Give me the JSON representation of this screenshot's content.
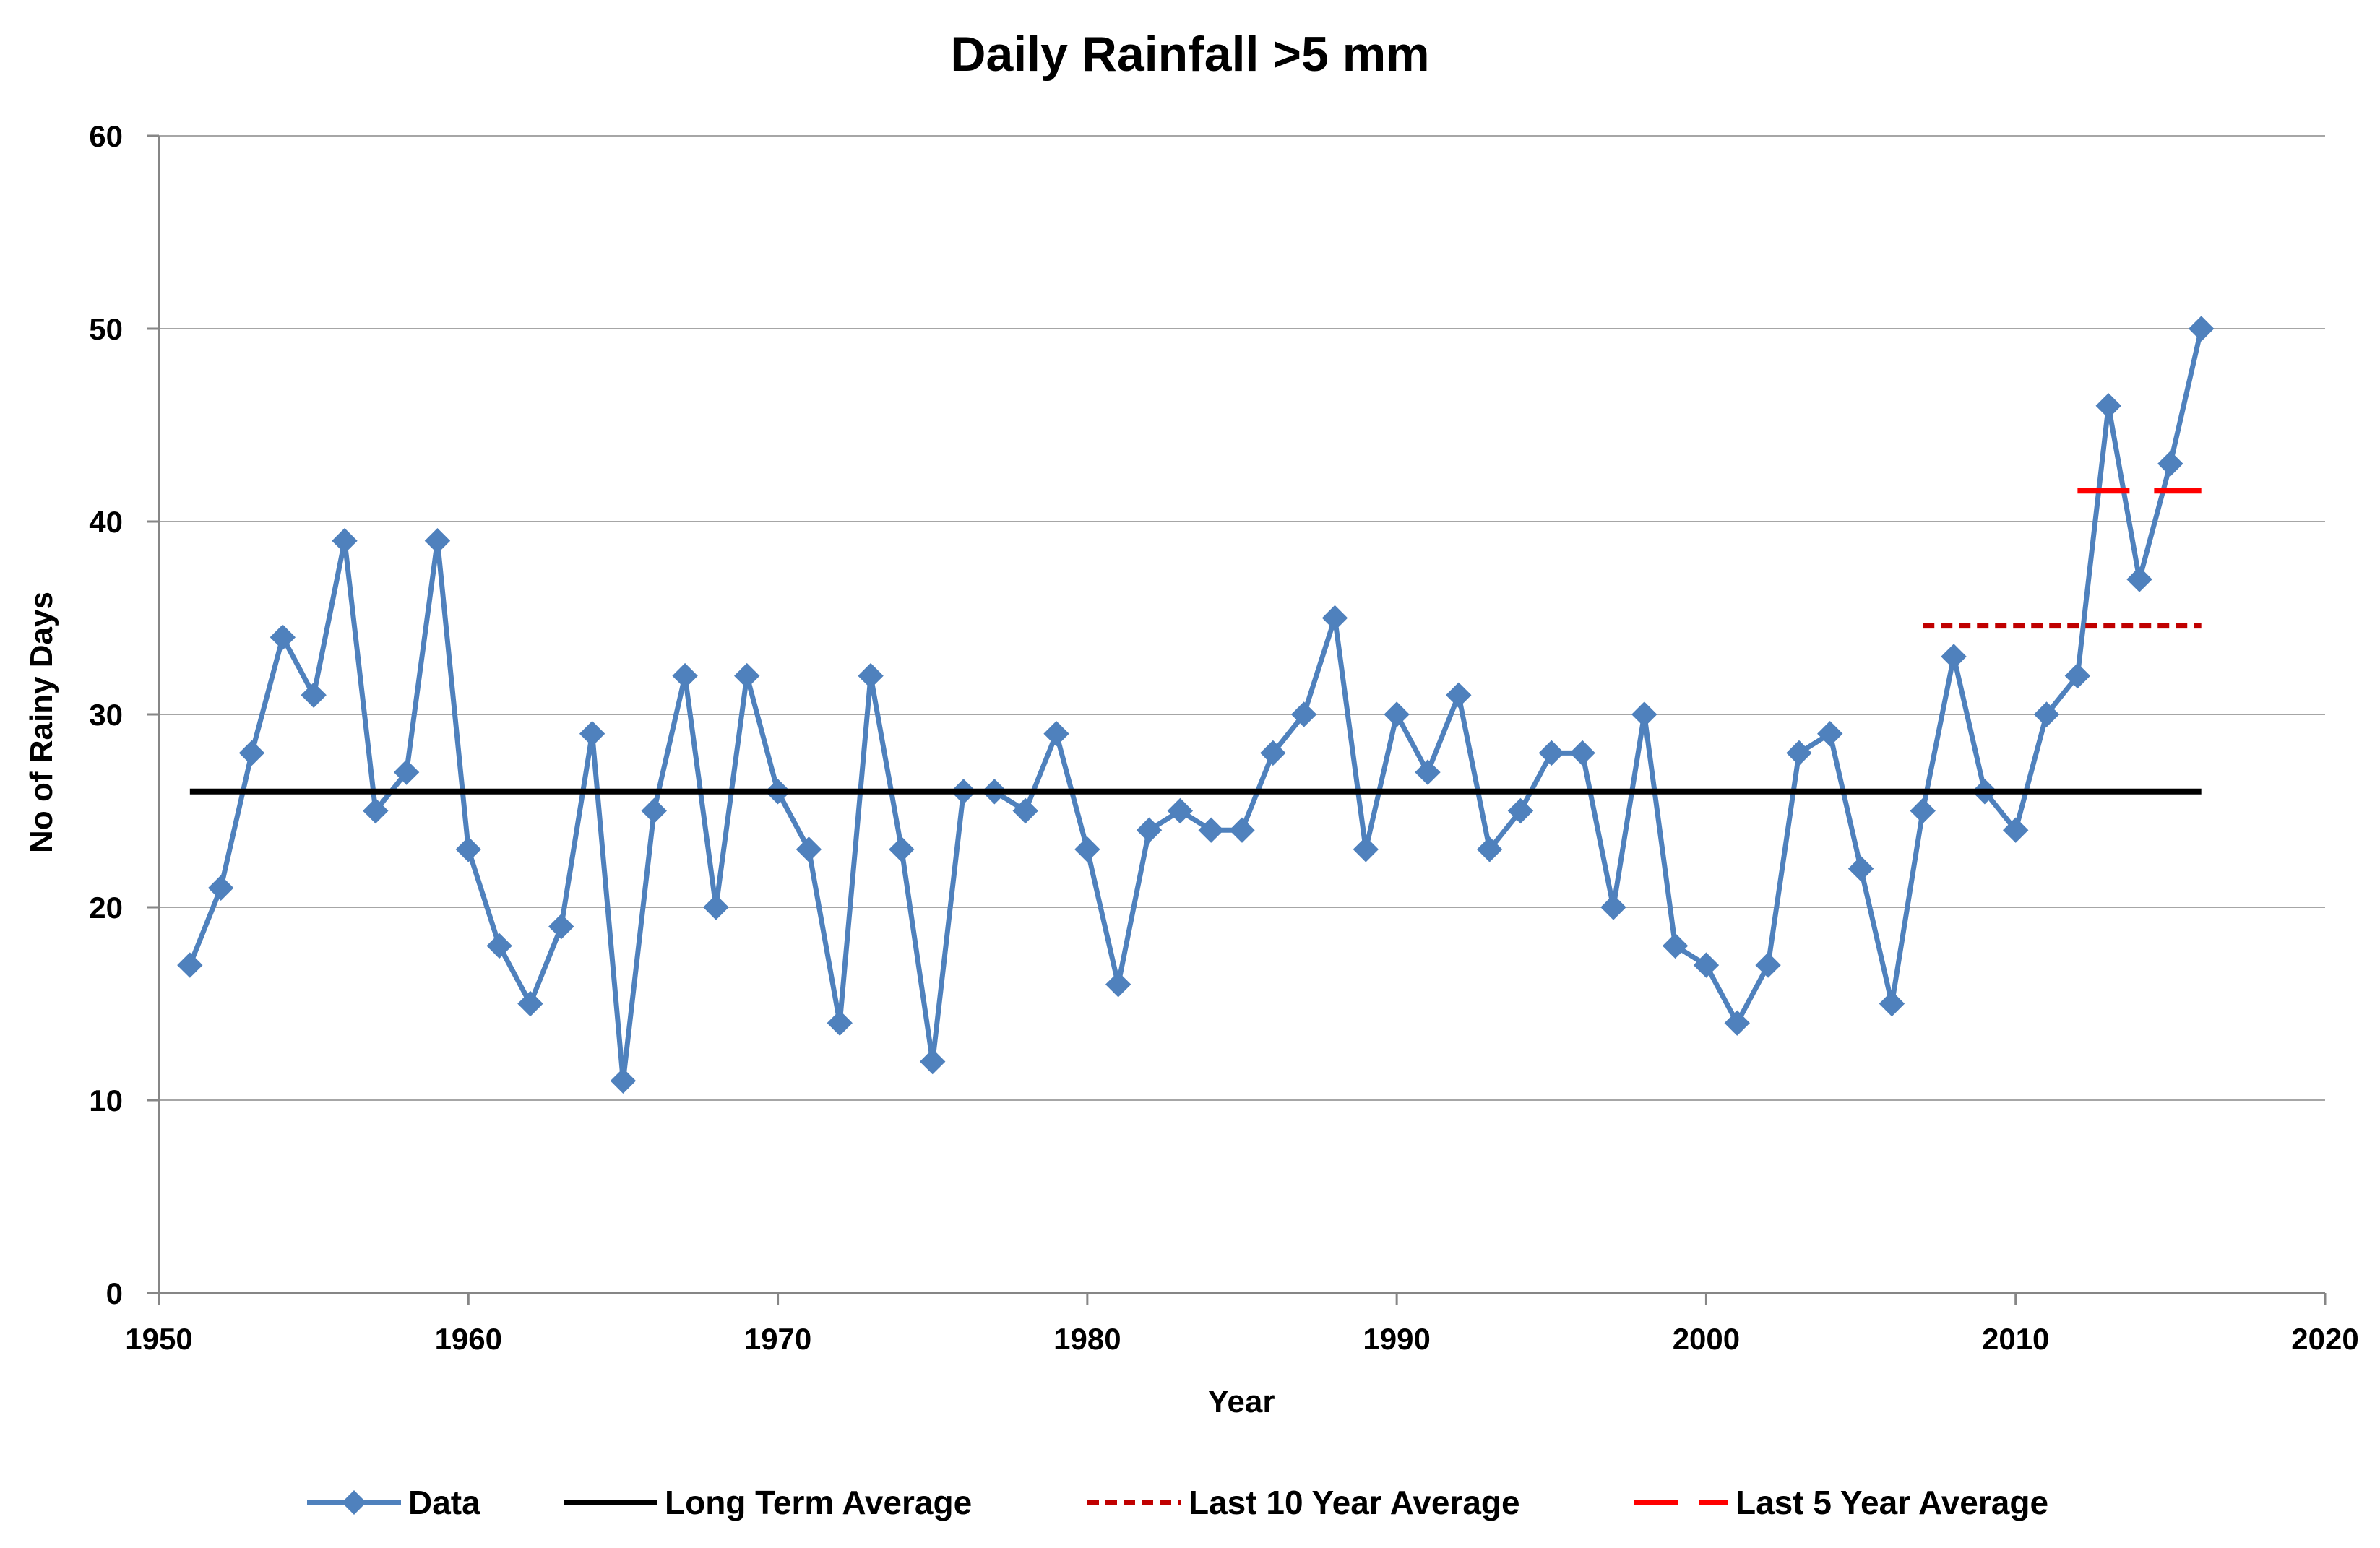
{
  "chart_data": {
    "type": "line",
    "title": "Daily Rainfall >5 mm",
    "xlabel": "Year",
    "ylabel": "No of Rainy Days",
    "xlim": [
      1950,
      2020
    ],
    "ylim": [
      0,
      60
    ],
    "xticks": [
      1950,
      1960,
      1970,
      1980,
      1990,
      2000,
      2010,
      2020
    ],
    "yticks": [
      0,
      10,
      20,
      30,
      40,
      50,
      60
    ],
    "grid": "horizontal",
    "legend_position": "bottom",
    "series": [
      {
        "name": "Data",
        "style": "line-diamond",
        "color": "#4F81BD",
        "x": [
          1951,
          1952,
          1953,
          1954,
          1955,
          1956,
          1957,
          1958,
          1959,
          1960,
          1961,
          1962,
          1963,
          1964,
          1965,
          1966,
          1967,
          1968,
          1969,
          1970,
          1971,
          1972,
          1973,
          1974,
          1975,
          1976,
          1977,
          1978,
          1979,
          1980,
          1981,
          1982,
          1983,
          1984,
          1985,
          1986,
          1987,
          1988,
          1989,
          1990,
          1991,
          1992,
          1993,
          1994,
          1995,
          1996,
          1997,
          1998,
          1999,
          2000,
          2001,
          2002,
          2003,
          2004,
          2005,
          2006,
          2007,
          2008,
          2009,
          2010,
          2011,
          2012,
          2013,
          2014,
          2015,
          2016
        ],
        "values": [
          17,
          21,
          28,
          34,
          31,
          39,
          25,
          27,
          39,
          23,
          18,
          15,
          19,
          29,
          11,
          25,
          32,
          20,
          32,
          26,
          23,
          14,
          32,
          23,
          12,
          26,
          26,
          25,
          29,
          23,
          16,
          24,
          25,
          24,
          24,
          28,
          30,
          35,
          23,
          30,
          27,
          31,
          23,
          25,
          28,
          28,
          20,
          30,
          18,
          17,
          14,
          17,
          28,
          29,
          22,
          15,
          25,
          33,
          26,
          24,
          30,
          32,
          46,
          37,
          43,
          50
        ]
      },
      {
        "name": "Long Term Average",
        "style": "solid",
        "color": "#000000",
        "x": [
          1951,
          2016
        ],
        "values": [
          26,
          26
        ]
      },
      {
        "name": "Last 10 Year Average",
        "style": "dashed",
        "color": "#C00000",
        "x": [
          2007,
          2016
        ],
        "values": [
          34.6,
          34.6
        ]
      },
      {
        "name": "Last 5 Year Average",
        "style": "long-dash",
        "color": "#FF0000",
        "x": [
          2012,
          2016
        ],
        "values": [
          41.6,
          41.6
        ]
      }
    ]
  }
}
